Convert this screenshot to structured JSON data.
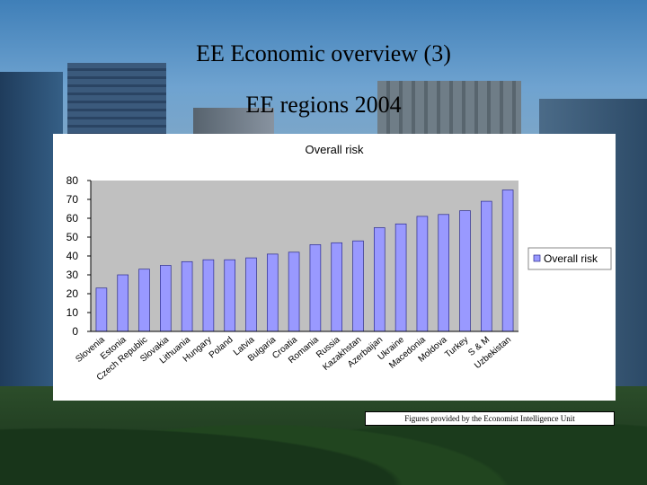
{
  "slide": {
    "title_line1": "EE Economic overview (3)",
    "title_line2": "EE regions 2004",
    "footnote": "Figures provided by the Economist Intelligence Unit"
  },
  "colors": {
    "bar_fill": "#9999ff",
    "bar_stroke": "#2b2b8c",
    "plot_bg": "#c0c0c0",
    "chart_bg": "#ffffff"
  },
  "chart_data": {
    "type": "bar",
    "title": "Overall risk",
    "xlabel": "",
    "ylabel": "",
    "ylim": [
      0,
      80
    ],
    "yticks": [
      0,
      10,
      20,
      30,
      40,
      50,
      60,
      70,
      80
    ],
    "grid": false,
    "legend": {
      "position": "right",
      "entries": [
        "Overall risk"
      ]
    },
    "categories": [
      "Slovenia",
      "Estonia",
      "Czech Republic",
      "Slovakia",
      "Lithuania",
      "Hungary",
      "Poland",
      "Latvia",
      "Bulgaria",
      "Croatia",
      "Romania",
      "Russia",
      "Kazakhstan",
      "Azerbaijan",
      "Ukraine",
      "Macedonia",
      "Moldova",
      "Turkey",
      "S & M",
      "Uzbekistan"
    ],
    "series": [
      {
        "name": "Overall risk",
        "values": [
          23,
          30,
          33,
          35,
          37,
          38,
          38,
          39,
          41,
          42,
          46,
          47,
          48,
          55,
          57,
          61,
          62,
          64,
          69,
          75
        ]
      }
    ]
  }
}
